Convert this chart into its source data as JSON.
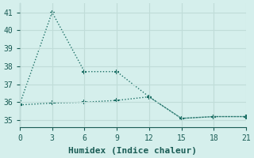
{
  "line1_x": [
    0,
    3,
    6,
    9,
    12,
    15,
    18,
    21
  ],
  "line1_y": [
    35.9,
    41.0,
    37.7,
    37.7,
    36.3,
    35.1,
    35.2,
    35.2
  ],
  "line2_x": [
    0,
    3,
    6,
    9,
    12,
    15,
    18,
    21
  ],
  "line2_y": [
    35.85,
    35.95,
    36.0,
    36.1,
    36.3,
    35.1,
    35.2,
    35.2
  ],
  "line_color": "#1a6e64",
  "marker": "+",
  "marker_size": 5,
  "marker_lw": 1.5,
  "xlabel": "Humidex (Indice chaleur)",
  "xlim": [
    0,
    21
  ],
  "ylim": [
    34.6,
    41.5
  ],
  "yticks": [
    35,
    36,
    37,
    38,
    39,
    40,
    41
  ],
  "xticks": [
    0,
    3,
    6,
    9,
    12,
    15,
    18,
    21
  ],
  "bg_color": "#d5efec",
  "grid_color": "#c0dcd8",
  "font_color": "#1a5c55",
  "font_family": "monospace",
  "linewidth": 1.0,
  "linestyle": ":"
}
